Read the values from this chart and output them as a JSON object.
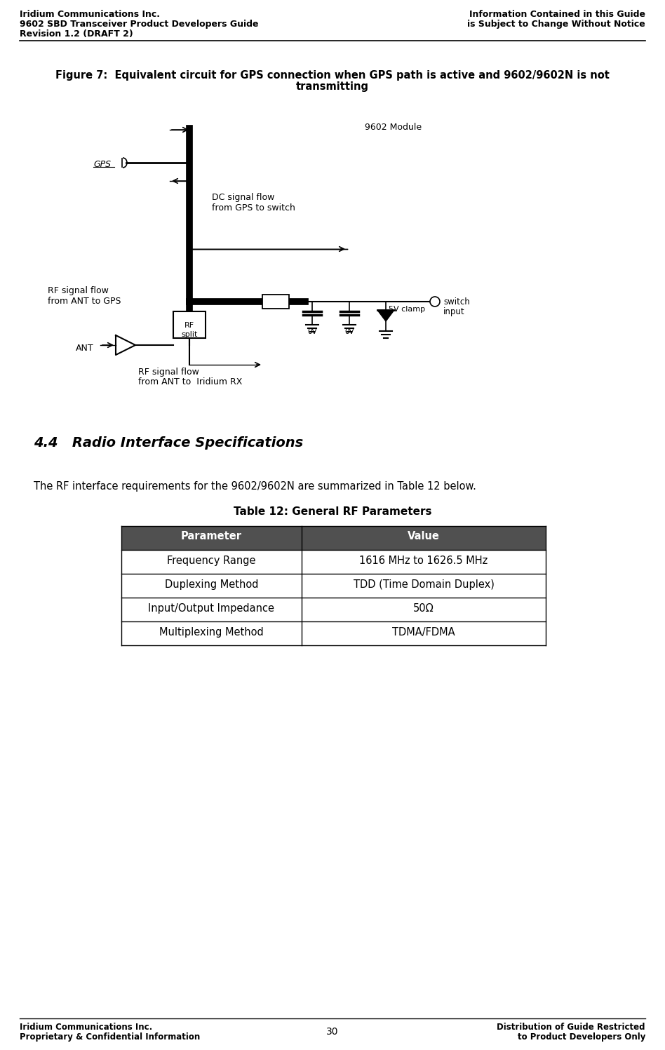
{
  "header_left": [
    "Iridium Communications Inc.",
    "9602 SBD Transceiver Product Developers Guide",
    "Revision 1.2 (DRAFT 2)"
  ],
  "header_right": [
    "Information Contained in this Guide",
    "is Subject to Change Without Notice"
  ],
  "footer_left": [
    "Iridium Communications Inc.",
    "Proprietary & Confidential Information"
  ],
  "footer_center": "30",
  "footer_right": [
    "Distribution of Guide Restricted",
    "to Product Developers Only"
  ],
  "figure_caption_line1": "Figure 7:  Equivalent circuit for GPS connection when GPS path is active and 9602/9602N is not",
  "figure_caption_line2": "transmitting",
  "section_title": "4.4   Radio Interface Specifications",
  "section_text": "The RF interface requirements for the 9602/9602N are summarized in Table 12 below.",
  "table_title": "Table 12: General RF Parameters",
  "table_headers": [
    "Parameter",
    "Value"
  ],
  "table_rows": [
    [
      "Frequency Range",
      "1616 MHz to 1626.5 MHz"
    ],
    [
      "Duplexing Method",
      "TDD (Time Domain Duplex)"
    ],
    [
      "Input/Output Impedance",
      "50Ω"
    ],
    [
      "Multiplexing Method",
      "TDMA/FDMA"
    ]
  ],
  "bg_color": "#ffffff",
  "table_header_bg": "#505050",
  "table_header_fg": "#ffffff"
}
